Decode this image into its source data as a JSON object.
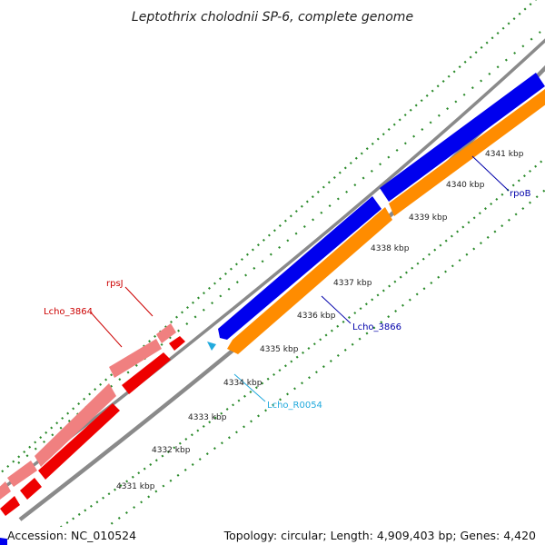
{
  "title": "Leptothrix cholodnii SP-6, complete genome",
  "footer": {
    "accession": "Accession: NC_010524",
    "summary": "Topology: circular; Length: 4,909,403 bp; Genes: 4,420"
  },
  "ticks": [
    {
      "label": "4331 kbp"
    },
    {
      "label": "4332 kbp"
    },
    {
      "label": "4333 kbp"
    },
    {
      "label": "4334 kbp"
    },
    {
      "label": "4335 kbp"
    },
    {
      "label": "4336 kbp"
    },
    {
      "label": "4337 kbp"
    },
    {
      "label": "4338 kbp"
    },
    {
      "label": "4339 kbp"
    },
    {
      "label": "4340 kbp"
    },
    {
      "label": "4341 kbp"
    }
  ],
  "genes": {
    "rpsJ": "rpsJ",
    "lcho3864": "Lcho_3864",
    "rpoB": "rpoB",
    "lcho3866": "Lcho_3866",
    "lchoR0054": "Lcho_R0054"
  },
  "colors": {
    "forward_cds": "#0000ee",
    "reverse_cds": "#ff8c00",
    "red_cds": "#ee0000",
    "pink_cds": "#f08080",
    "rna": "#22aadd",
    "tick": "#2a8a2a",
    "backbone": "#888888"
  }
}
